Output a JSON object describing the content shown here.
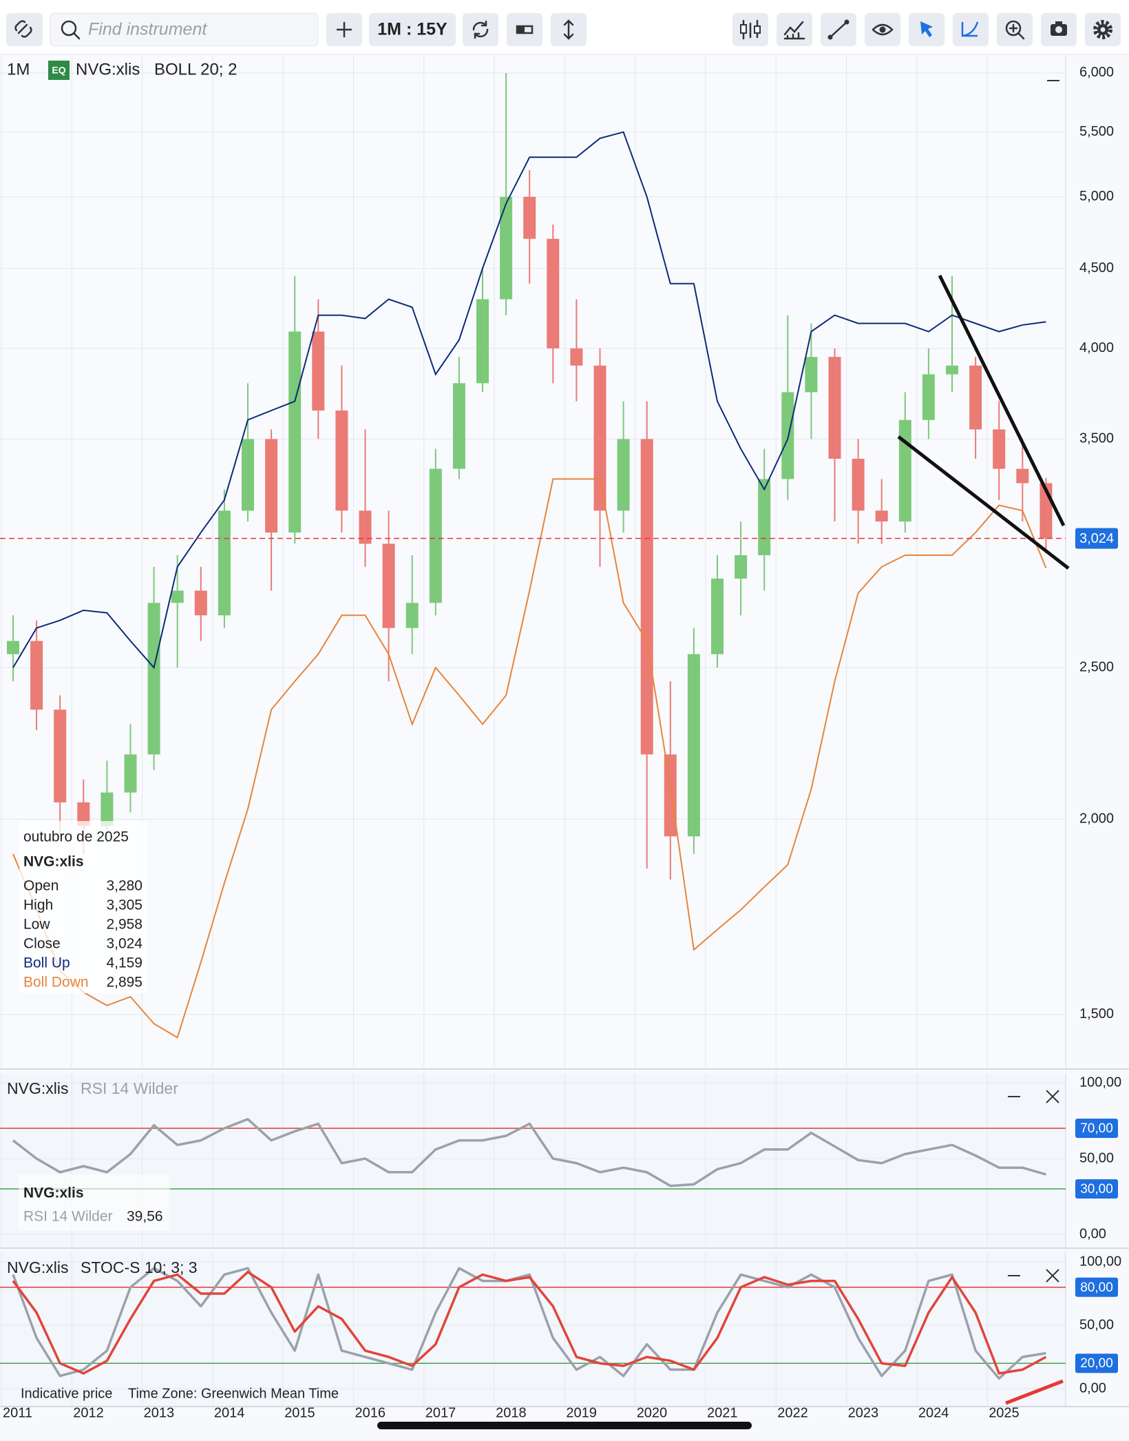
{
  "toolbar": {
    "search_placeholder": "Find instrument",
    "period": "1M : 15Y"
  },
  "header": {
    "interval": "1M",
    "badge": "EQ",
    "instrument": "NVG:xlis",
    "study": "BOLL 20; 2"
  },
  "footer": {
    "note": "Indicative price",
    "timezone": "Time Zone: Greenwich Mean Time"
  },
  "chart_data": [
    {
      "type": "candlestick",
      "log_scale": true,
      "grid": true,
      "categories": [
        "2011",
        null,
        null,
        "2012",
        null,
        null,
        "2013",
        null,
        null,
        "2014",
        null,
        null,
        "2015",
        null,
        null,
        "2016",
        null,
        null,
        "2017",
        null,
        null,
        "2018",
        null,
        null,
        "2019",
        null,
        null,
        "2020",
        null,
        null,
        "2021",
        null,
        null,
        "2022",
        null,
        null,
        "2023",
        null,
        null,
        "2024",
        null,
        null,
        "2025",
        null,
        null
      ],
      "open": [
        2550,
        2600,
        2350,
        2050,
        1980,
        2080,
        2200,
        2750,
        2800,
        2700,
        3150,
        3500,
        3050,
        4100,
        3650,
        3150,
        3000,
        2650,
        2750,
        3350,
        3800,
        4300,
        5000,
        4700,
        4000,
        3900,
        3150,
        3500,
        2200,
        1950,
        2550,
        2850,
        2950,
        3300,
        3750,
        3950,
        3400,
        3150,
        3100,
        3600,
        3850,
        3900,
        3550,
        3350,
        3280
      ],
      "high": [
        2700,
        2680,
        2400,
        2120,
        2180,
        2300,
        2900,
        2950,
        2900,
        3250,
        3800,
        3550,
        4450,
        4300,
        3900,
        3550,
        3150,
        2950,
        3450,
        3950,
        4500,
        6000,
        5200,
        4800,
        4300,
        4000,
        3700,
        3700,
        2450,
        2650,
        2950,
        3100,
        3450,
        4200,
        4150,
        4000,
        3500,
        3300,
        3750,
        4000,
        4450,
        3950,
        3700,
        3500,
        3305
      ],
      "low": [
        2450,
        2280,
        1950,
        1900,
        1930,
        2020,
        2150,
        2500,
        2600,
        2650,
        3100,
        2800,
        3000,
        3500,
        3050,
        2900,
        2450,
        2550,
        2700,
        3300,
        3750,
        4200,
        4400,
        3800,
        3700,
        2900,
        3050,
        1860,
        1830,
        1900,
        2500,
        2700,
        2800,
        3200,
        3500,
        3100,
        3000,
        3000,
        3050,
        3500,
        3750,
        3400,
        3200,
        3100,
        2958
      ],
      "close": [
        2600,
        2350,
        2050,
        1980,
        2080,
        2200,
        2750,
        2800,
        2700,
        3150,
        3500,
        3050,
        4100,
        3650,
        3150,
        3000,
        2650,
        2750,
        3350,
        3800,
        4300,
        5000,
        4700,
        4000,
        3900,
        3150,
        3500,
        2200,
        1950,
        2550,
        2850,
        2950,
        3300,
        3750,
        3950,
        3400,
        3150,
        3100,
        3600,
        3850,
        3900,
        3550,
        3350,
        3280,
        3024
      ],
      "up_color": "#7cc97a",
      "down_color": "#ea7b75",
      "overlays": [
        {
          "color": "#0d2a7a",
          "values": [
            2500,
            2650,
            2680,
            2720,
            2710,
            2600,
            2500,
            2900,
            3050,
            3200,
            3600,
            3650,
            3700,
            4200,
            4200,
            4180,
            4300,
            4250,
            3850,
            4050,
            4500,
            4950,
            5300,
            5300,
            5300,
            5450,
            5500,
            5000,
            4400,
            4400,
            3700,
            3450,
            3250,
            3500,
            4100,
            4200,
            4150,
            4150,
            4150,
            4100,
            4200,
            4150,
            4100,
            4140,
            4159
          ]
        },
        {
          "color": "#e8843a",
          "values": [
            1900,
            1750,
            1600,
            1550,
            1520,
            1540,
            1480,
            1450,
            1620,
            1820,
            2030,
            2350,
            2450,
            2550,
            2700,
            2700,
            2550,
            2300,
            2500,
            2400,
            2300,
            2400,
            2800,
            3300,
            3300,
            3300,
            2750,
            2600,
            2100,
            1650,
            1700,
            1750,
            1810,
            1870,
            2090,
            2450,
            2790,
            2900,
            2950,
            2950,
            2950,
            3050,
            3175,
            3150,
            2895
          ]
        }
      ],
      "ylim": [
        1390,
        6160
      ],
      "yticks": [
        {
          "value": 1500,
          "label": "1,500"
        },
        {
          "value": 2000,
          "label": "2,000"
        },
        {
          "value": 2500,
          "label": "2,500"
        },
        {
          "value": 3500,
          "label": "3,500"
        },
        {
          "value": 4000,
          "label": "4,000"
        },
        {
          "value": 4500,
          "label": "4,500"
        },
        {
          "value": 5000,
          "label": "5,000"
        },
        {
          "value": 5500,
          "label": "5,500"
        },
        {
          "value": 6000,
          "label": "6,000"
        }
      ],
      "last": {
        "value": 3024,
        "label": "3,024"
      },
      "info": {
        "date": "outubro de 2025",
        "instrument": "NVG:xlis",
        "rows": [
          {
            "label": "Open",
            "value": "3,280"
          },
          {
            "label": "High",
            "value": "3,305"
          },
          {
            "label": "Low",
            "value": "2,958"
          },
          {
            "label": "Close",
            "value": "3,024"
          },
          {
            "label": "Boll Up",
            "value": "4,159",
            "color": "#0d2a7a"
          },
          {
            "label": "Boll Down",
            "value": "2,895",
            "color": "#e8843a"
          }
        ]
      }
    },
    {
      "type": "line",
      "title": "NVG:xlis",
      "indicator": "RSI 14 Wilder",
      "series": [
        {
          "color": "#9aa1ab",
          "values": [
            62,
            50,
            41,
            45,
            41,
            53,
            72,
            59,
            62,
            70,
            76,
            62,
            68,
            73,
            47,
            50,
            41,
            41,
            56,
            62,
            62,
            65,
            73,
            50,
            47,
            41,
            44,
            41,
            32,
            33,
            43,
            47,
            56,
            56,
            67,
            58,
            49,
            47,
            53,
            56,
            59,
            52,
            44,
            44,
            39.56
          ]
        }
      ],
      "ylim": [
        0,
        100
      ],
      "yticks": [
        {
          "value": 100,
          "label": "100,00"
        },
        {
          "value": 50,
          "label": "50,00"
        },
        {
          "value": 0,
          "label": "0,00"
        }
      ],
      "levels": [
        {
          "value": 70,
          "label": "70,00",
          "color": "#e53935"
        },
        {
          "value": 30,
          "label": "30,00",
          "color": "#43a047"
        }
      ],
      "info": {
        "instrument": "NVG:xlis",
        "indicator": "RSI 14 Wilder",
        "value": "39,56"
      }
    },
    {
      "type": "line",
      "title": "NVG:xlis",
      "indicator": "STOC-S 10; 3; 3",
      "series": [
        {
          "color": "#9aa1ab",
          "values": [
            90,
            40,
            10,
            15,
            30,
            80,
            95,
            85,
            65,
            90,
            95,
            60,
            30,
            90,
            30,
            25,
            20,
            15,
            60,
            95,
            85,
            85,
            90,
            40,
            15,
            25,
            10,
            35,
            15,
            15,
            60,
            90,
            85,
            80,
            90,
            80,
            40,
            10,
            30,
            85,
            90,
            30,
            8,
            25,
            28
          ]
        },
        {
          "color": "#e0453a",
          "values": [
            85,
            60,
            20,
            12,
            22,
            55,
            85,
            90,
            75,
            75,
            92,
            80,
            45,
            65,
            55,
            30,
            25,
            18,
            35,
            80,
            90,
            85,
            88,
            65,
            25,
            20,
            18,
            25,
            22,
            15,
            40,
            80,
            88,
            82,
            85,
            85,
            55,
            20,
            18,
            60,
            88,
            60,
            12,
            15,
            25
          ]
        }
      ],
      "ylim": [
        0,
        100
      ],
      "yticks": [
        {
          "value": 100,
          "label": "100,00"
        },
        {
          "value": 50,
          "label": "50,00"
        },
        {
          "value": 0,
          "label": "0,00"
        }
      ],
      "levels": [
        {
          "value": 80,
          "label": "80,00",
          "color": "#e53935"
        },
        {
          "value": 20,
          "label": "20,00",
          "color": "#43a047"
        }
      ]
    }
  ]
}
